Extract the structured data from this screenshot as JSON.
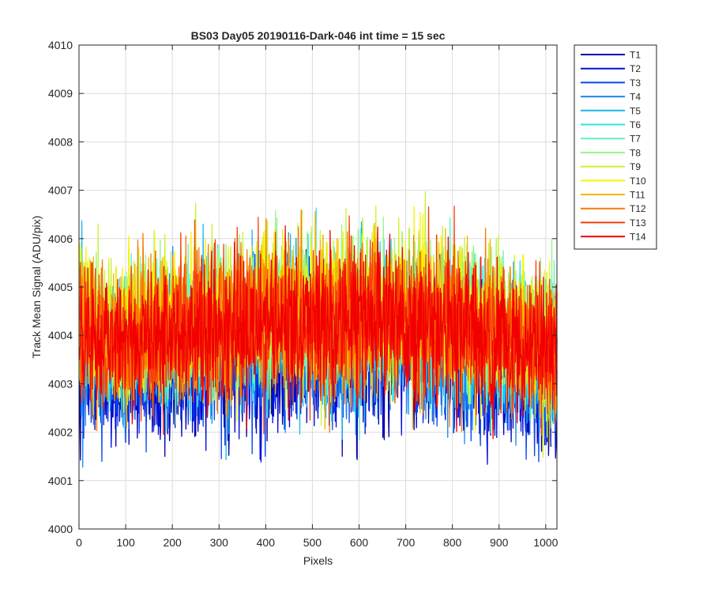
{
  "chart_data": {
    "type": "line",
    "title": "BS03 Day05 20190116-Dark-046 int time = 15 sec",
    "xlabel": "Pixels",
    "ylabel": "Track Mean Signal (ADU/pix)",
    "xlim": [
      0,
      1024
    ],
    "ylim": [
      4000,
      4010
    ],
    "xticks": [
      0,
      100,
      200,
      300,
      400,
      500,
      600,
      700,
      800,
      900,
      1000
    ],
    "yticks": [
      4000,
      4001,
      4002,
      4003,
      4004,
      4005,
      4006,
      4007,
      4008,
      4009,
      4010
    ],
    "grid": true,
    "legend_position": "outside-right-top",
    "noise_profile": {
      "x": [
        0,
        10,
        30,
        60,
        100,
        150,
        200,
        300,
        400,
        500,
        600,
        700,
        800,
        900,
        960,
        1000,
        1024
      ],
      "mean": [
        4004.3,
        4004.2,
        4004.0,
        4003.8,
        4003.8,
        4004.0,
        4004.0,
        4004.2,
        4004.3,
        4004.3,
        4004.3,
        4004.3,
        4004.2,
        4004.0,
        4003.8,
        4003.6,
        4003.5
      ],
      "amplitude": [
        1.9,
        1.8,
        1.7,
        1.6,
        1.6,
        1.7,
        1.7,
        1.8,
        1.8,
        1.8,
        1.8,
        1.8,
        1.8,
        1.7,
        1.6,
        1.7,
        1.7
      ]
    },
    "series": [
      {
        "name": "T1",
        "color": "#0000b0",
        "offset": -0.75
      },
      {
        "name": "T2",
        "color": "#0010d8",
        "offset": -0.65
      },
      {
        "name": "T3",
        "color": "#0a44f0",
        "offset": -0.55
      },
      {
        "name": "T4",
        "color": "#1a88f4",
        "offset": -0.35
      },
      {
        "name": "T5",
        "color": "#18b8f0",
        "offset": -0.15
      },
      {
        "name": "T6",
        "color": "#22e4ec",
        "offset": 0.0
      },
      {
        "name": "T7",
        "color": "#62f4c4",
        "offset": 0.1
      },
      {
        "name": "T8",
        "color": "#96f48a",
        "offset": 0.2
      },
      {
        "name": "T9",
        "color": "#cef230",
        "offset": 0.25
      },
      {
        "name": "T10",
        "color": "#f8f400",
        "offset": 0.2
      },
      {
        "name": "T11",
        "color": "#f8b400",
        "offset": 0.1
      },
      {
        "name": "T12",
        "color": "#fa7a00",
        "offset": 0.05
      },
      {
        "name": "T13",
        "color": "#f83e0a",
        "offset": 0.0
      },
      {
        "name": "T14",
        "color": "#f20000",
        "offset": -0.05
      }
    ]
  }
}
